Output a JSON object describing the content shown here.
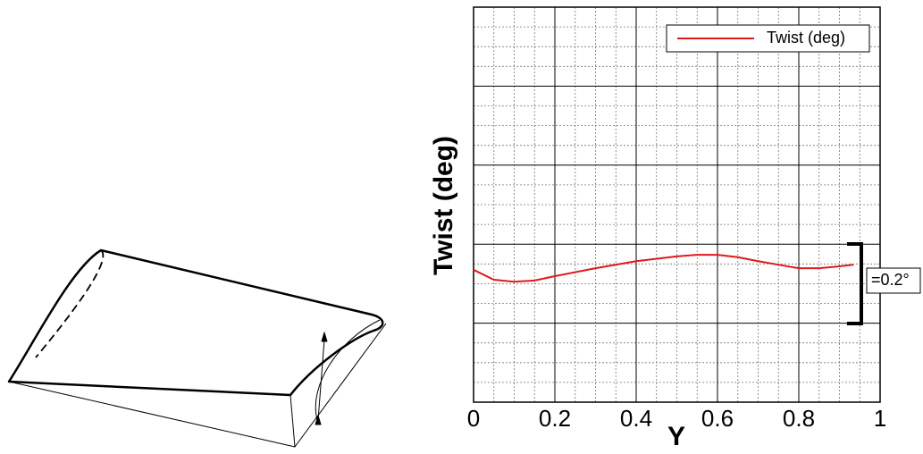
{
  "chart_data": {
    "type": "line",
    "x_label": "Y",
    "y_label": "Twist (deg)",
    "x": [
      0,
      0.05,
      0.1,
      0.15,
      0.2,
      0.3,
      0.4,
      0.5,
      0.55,
      0.6,
      0.65,
      0.7,
      0.75,
      0.8,
      0.85,
      0.9,
      0.935
    ],
    "series": [
      {
        "name": "Twist (deg)",
        "color": "#e0191c",
        "values": [
          -0.265,
          -0.29,
          -0.295,
          -0.292,
          -0.281,
          -0.261,
          -0.243,
          -0.231,
          -0.227,
          -0.227,
          -0.233,
          -0.243,
          -0.252,
          -0.261,
          -0.261,
          -0.256,
          -0.252
        ]
      }
    ],
    "xlim": [
      0,
      1
    ],
    "xticks": [
      0,
      0.2,
      0.4,
      0.6,
      0.8,
      1
    ],
    "ylim": [
      -0.6,
      0.4
    ],
    "grid": true,
    "legend": "top-right",
    "annotation": "=0.2°"
  }
}
